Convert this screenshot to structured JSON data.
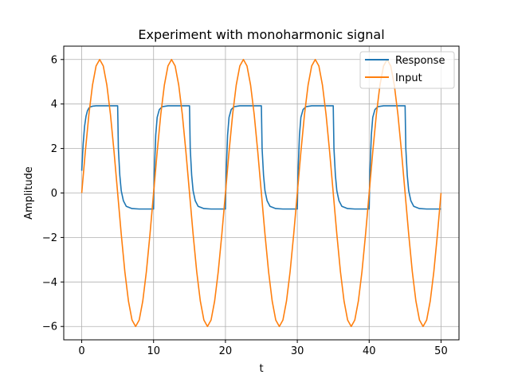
{
  "chart_data": {
    "type": "line",
    "title": "Experiment with monoharmonic signal",
    "xlabel": "t",
    "ylabel": "Amplitude",
    "xlim": [
      -2.5,
      52.5
    ],
    "ylim": [
      -6.6,
      6.6
    ],
    "x_ticks": [
      0,
      10,
      20,
      30,
      40,
      50
    ],
    "y_ticks": [
      -6,
      -4,
      -2,
      0,
      2,
      4,
      6
    ],
    "y_tick_labels": [
      "−6",
      "−4",
      "−2",
      "0",
      "2",
      "4",
      "6"
    ],
    "grid": true,
    "legend_position": "upper right",
    "series": [
      {
        "name": "Response",
        "color": "#1f77b4",
        "x": [
          0,
          0.2,
          0.4,
          0.6,
          0.8,
          1,
          1.2,
          1.5,
          2,
          3,
          4,
          5,
          5.1,
          5.3,
          5.5,
          5.8,
          6.2,
          7,
          8,
          9,
          10,
          10.1,
          10.3,
          10.5,
          10.8,
          11.2,
          12,
          13,
          14,
          15,
          15.1,
          15.3,
          15.5,
          15.8,
          16.2,
          17,
          18,
          19,
          20,
          20.1,
          20.3,
          20.5,
          20.8,
          21.2,
          22,
          23,
          24,
          25,
          25.1,
          25.3,
          25.5,
          25.8,
          26.2,
          27,
          28,
          29,
          30,
          30.1,
          30.3,
          30.5,
          30.8,
          31.2,
          32,
          33,
          34,
          35,
          35.1,
          35.3,
          35.5,
          35.8,
          36.2,
          37,
          38,
          39,
          40,
          40.1,
          40.3,
          40.5,
          40.8,
          41.2,
          42,
          43,
          44,
          45,
          45.1,
          45.3,
          45.5,
          45.8,
          46.2,
          47,
          48,
          49,
          50
        ],
        "y": [
          1.0,
          2.2,
          3.0,
          3.45,
          3.7,
          3.82,
          3.87,
          3.9,
          3.92,
          3.92,
          3.92,
          3.92,
          2.0,
          0.8,
          0.1,
          -0.35,
          -0.6,
          -0.7,
          -0.72,
          -0.72,
          -0.72,
          0.9,
          2.6,
          3.4,
          3.75,
          3.88,
          3.92,
          3.92,
          3.92,
          3.92,
          2.0,
          0.8,
          0.1,
          -0.35,
          -0.6,
          -0.7,
          -0.72,
          -0.72,
          -0.72,
          0.9,
          2.6,
          3.4,
          3.75,
          3.88,
          3.92,
          3.92,
          3.92,
          3.92,
          2.0,
          0.8,
          0.1,
          -0.35,
          -0.6,
          -0.7,
          -0.72,
          -0.72,
          -0.72,
          0.9,
          2.6,
          3.4,
          3.75,
          3.88,
          3.92,
          3.92,
          3.92,
          3.92,
          2.0,
          0.8,
          0.1,
          -0.35,
          -0.6,
          -0.7,
          -0.72,
          -0.72,
          -0.72,
          0.9,
          2.6,
          3.4,
          3.75,
          3.88,
          3.92,
          3.92,
          3.92,
          3.92,
          2.0,
          0.8,
          0.1,
          -0.35,
          -0.6,
          -0.7,
          -0.72,
          -0.72,
          -0.72
        ]
      },
      {
        "name": "Input",
        "color": "#ff7f0e",
        "x": [
          0,
          0.5,
          1,
          1.5,
          2,
          2.5,
          3,
          3.5,
          4,
          4.5,
          5,
          5.5,
          6,
          6.5,
          7,
          7.5,
          8,
          8.5,
          9,
          9.5,
          10,
          10.5,
          11,
          11.5,
          12,
          12.5,
          13,
          13.5,
          14,
          14.5,
          15,
          15.5,
          16,
          16.5,
          17,
          17.5,
          18,
          18.5,
          19,
          19.5,
          20,
          20.5,
          21,
          21.5,
          22,
          22.5,
          23,
          23.5,
          24,
          24.5,
          25,
          25.5,
          26,
          26.5,
          27,
          27.5,
          28,
          28.5,
          29,
          29.5,
          30,
          30.5,
          31,
          31.5,
          32,
          32.5,
          33,
          33.5,
          34,
          34.5,
          35,
          35.5,
          36,
          36.5,
          37,
          37.5,
          38,
          38.5,
          39,
          39.5,
          40,
          40.5,
          41,
          41.5,
          42,
          42.5,
          43,
          43.5,
          44,
          44.5,
          45,
          45.5,
          46,
          46.5,
          47,
          47.5,
          48,
          48.5,
          49,
          49.5,
          50
        ],
        "y": [
          0,
          1.85,
          3.53,
          4.85,
          5.71,
          6.0,
          5.71,
          4.85,
          3.53,
          1.85,
          0,
          -1.85,
          -3.53,
          -4.85,
          -5.71,
          -6.0,
          -5.71,
          -4.85,
          -3.53,
          -1.85,
          0,
          1.85,
          3.53,
          4.85,
          5.71,
          6.0,
          5.71,
          4.85,
          3.53,
          1.85,
          0,
          -1.85,
          -3.53,
          -4.85,
          -5.71,
          -6.0,
          -5.71,
          -4.85,
          -3.53,
          -1.85,
          0,
          1.85,
          3.53,
          4.85,
          5.71,
          6.0,
          5.71,
          4.85,
          3.53,
          1.85,
          0,
          -1.85,
          -3.53,
          -4.85,
          -5.71,
          -6.0,
          -5.71,
          -4.85,
          -3.53,
          -1.85,
          0,
          1.85,
          3.53,
          4.85,
          5.71,
          6.0,
          5.71,
          4.85,
          3.53,
          1.85,
          0,
          -1.85,
          -3.53,
          -4.85,
          -5.71,
          -6.0,
          -5.71,
          -4.85,
          -3.53,
          -1.85,
          0,
          1.85,
          3.53,
          4.85,
          5.71,
          6.0,
          5.71,
          4.85,
          3.53,
          1.85,
          0,
          -1.85,
          -3.53,
          -4.85,
          -5.71,
          -6.0,
          -5.71,
          -4.85,
          -3.53,
          -1.85,
          0
        ]
      }
    ]
  }
}
